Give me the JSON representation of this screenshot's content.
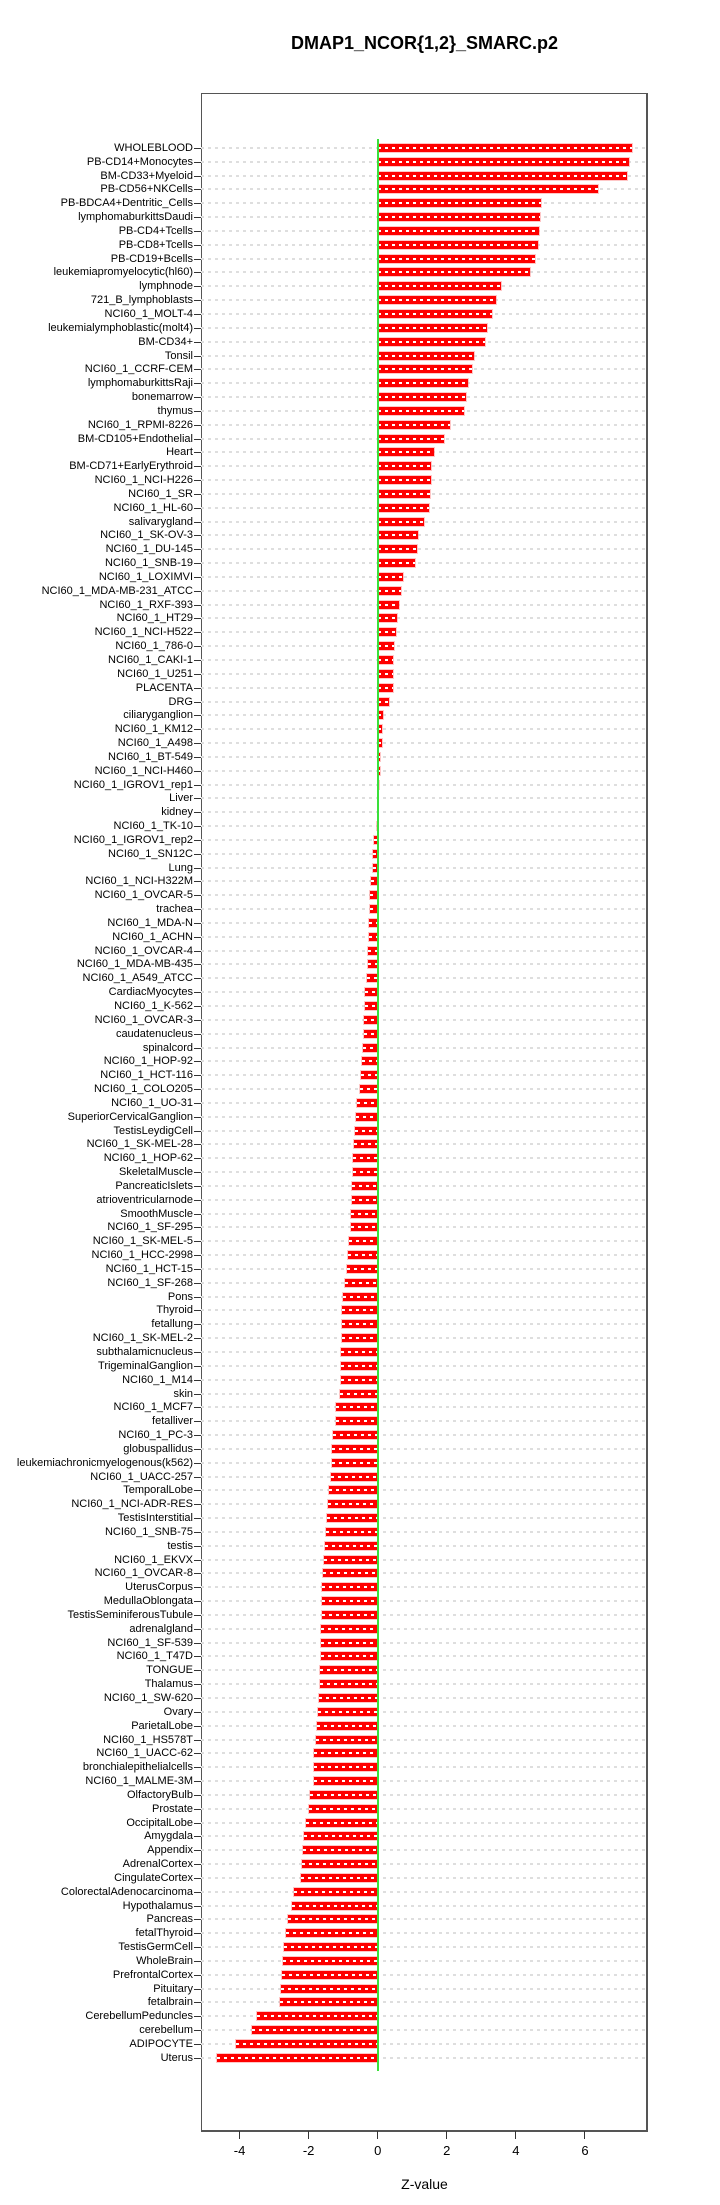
{
  "title": "DMAP1_NCOR{1,2}_SMARC.p2",
  "chart_data": {
    "type": "bar",
    "orientation": "horizontal",
    "title": "DMAP1_NCOR{1,2}_SMARC.p2",
    "xlabel": "Z-value",
    "xlim": [
      -5.115,
      7.824
    ],
    "xticks": [
      -4,
      -2,
      0,
      2,
      4,
      6
    ],
    "grid": "dashed-horizontal-per-row",
    "legend": "none",
    "bar_color": "#fe0000",
    "zero_line_color": "#3ae03a",
    "grid_color": "#dedede",
    "categories": [
      "WHOLEBLOOD",
      "PB-CD14+Monocytes",
      "BM-CD33+Myeloid",
      "PB-CD56+NKCells",
      "PB-BDCA4+Dentritic_Cells",
      "lymphomaburkittsDaudi",
      "PB-CD4+Tcells",
      "PB-CD8+Tcells",
      "PB-CD19+Bcells",
      "leukemiapromyelocytic(hl60)",
      "lymphnode",
      "721_B_lymphoblasts",
      "NCI60_1_MOLT-4",
      "leukemialymphoblastic(molt4)",
      "BM-CD34+",
      "Tonsil",
      "NCI60_1_CCRF-CEM",
      "lymphomaburkittsRaji",
      "bonemarrow",
      "thymus",
      "NCI60_1_RPMI-8226",
      "BM-CD105+Endothelial",
      "Heart",
      "BM-CD71+EarlyErythroid",
      "NCI60_1_NCI-H226",
      "NCI60_1_SR",
      "NCI60_1_HL-60",
      "salivarygland",
      "NCI60_1_SK-OV-3",
      "NCI60_1_DU-145",
      "NCI60_1_SNB-19",
      "NCI60_1_LOXIMVI",
      "NCI60_1_MDA-MB-231_ATCC",
      "NCI60_1_RXF-393",
      "NCI60_1_HT29",
      "NCI60_1_NCI-H522",
      "NCI60_1_786-0",
      "NCI60_1_CAKI-1",
      "NCI60_1_U251",
      "PLACENTA",
      "DRG",
      "ciliaryganglion",
      "NCI60_1_KM12",
      "NCI60_1_A498",
      "NCI60_1_BT-549",
      "NCI60_1_NCI-H460",
      "NCI60_1_IGROV1_rep1",
      "Liver",
      "kidney",
      "NCI60_1_TK-10",
      "NCI60_1_IGROV1_rep2",
      "NCI60_1_SN12C",
      "Lung",
      "NCI60_1_NCI-H322M",
      "NCI60_1_OVCAR-5",
      "trachea",
      "NCI60_1_MDA-N",
      "NCI60_1_ACHN",
      "NCI60_1_OVCAR-4",
      "NCI60_1_MDA-MB-435",
      "NCI60_1_A549_ATCC",
      "CardiacMyocytes",
      "NCI60_1_K-562",
      "NCI60_1_OVCAR-3",
      "caudatenucleus",
      "spinalcord",
      "NCI60_1_HOP-92",
      "NCI60_1_HCT-116",
      "NCI60_1_COLO205",
      "NCI60_1_UO-31",
      "SuperiorCervicalGanglion",
      "TestisLeydigCell",
      "NCI60_1_SK-MEL-28",
      "NCI60_1_HOP-62",
      "SkeletalMuscle",
      "PancreaticIslets",
      "atrioventricularnode",
      "SmoothMuscle",
      "NCI60_1_SF-295",
      "NCI60_1_SK-MEL-5",
      "NCI60_1_HCC-2998",
      "NCI60_1_HCT-15",
      "NCI60_1_SF-268",
      "Pons",
      "Thyroid",
      "fetallung",
      "NCI60_1_SK-MEL-2",
      "subthalamicnucleus",
      "TrigeminalGanglion",
      "NCI60_1_M14",
      "skin",
      "NCI60_1_MCF7",
      "fetalliver",
      "NCI60_1_PC-3",
      "globuspallidus",
      "leukemiachronicmyelogenous(k562)",
      "NCI60_1_UACC-257",
      "TemporalLobe",
      "NCI60_1_NCI-ADR-RES",
      "TestisInterstitial",
      "NCI60_1_SNB-75",
      "testis",
      "NCI60_1_EKVX",
      "NCI60_1_OVCAR-8",
      "UterusCorpus",
      "MedullaOblongata",
      "TestisSeminiferousTubule",
      "adrenalgland",
      "NCI60_1_SF-539",
      "NCI60_1_T47D",
      "TONGUE",
      "Thalamus",
      "NCI60_1_SW-620",
      "Ovary",
      "ParietalLobe",
      "NCI60_1_HS578T",
      "NCI60_1_UACC-62",
      "bronchialepithelialcells",
      "NCI60_1_MALME-3M",
      "OlfactoryBulb",
      "Prostate",
      "OccipitalLobe",
      "Amygdala",
      "Appendix",
      "AdrenalCortex",
      "CingulateCortex",
      "ColorectalAdenocarcinoma",
      "Hypothalamus",
      "Pancreas",
      "fetalThyroid",
      "TestisGermCell",
      "WholeBrain",
      "PrefrontalCortex",
      "Pituitary",
      "fetalbrain",
      "CerebellumPeduncles",
      "cerebellum",
      "ADIPOCYTE",
      "Uterus"
    ],
    "values": [
      7.35,
      7.28,
      7.23,
      6.38,
      4.72,
      4.7,
      4.67,
      4.63,
      4.55,
      4.42,
      3.58,
      3.43,
      3.3,
      3.17,
      3.1,
      2.79,
      2.72,
      2.62,
      2.57,
      2.5,
      2.09,
      1.92,
      1.64,
      1.55,
      1.54,
      1.52,
      1.48,
      1.35,
      1.17,
      1.13,
      1.08,
      0.74,
      0.67,
      0.62,
      0.55,
      0.52,
      0.47,
      0.45,
      0.45,
      0.43,
      0.34,
      0.14,
      0.11,
      0.11,
      0.08,
      0.06,
      0.04,
      0.01,
      0.0,
      -0.02,
      -0.11,
      -0.13,
      -0.15,
      -0.19,
      -0.22,
      -0.23,
      -0.24,
      -0.26,
      -0.27,
      -0.29,
      -0.32,
      -0.36,
      -0.38,
      -0.39,
      -0.4,
      -0.42,
      -0.45,
      -0.48,
      -0.52,
      -0.59,
      -0.63,
      -0.66,
      -0.69,
      -0.71,
      -0.72,
      -0.73,
      -0.74,
      -0.76,
      -0.78,
      -0.83,
      -0.86,
      -0.88,
      -0.96,
      -1.0,
      -1.02,
      -1.02,
      -1.03,
      -1.05,
      -1.05,
      -1.07,
      -1.08,
      -1.2,
      -1.22,
      -1.28,
      -1.31,
      -1.32,
      -1.36,
      -1.41,
      -1.44,
      -1.46,
      -1.51,
      -1.54,
      -1.56,
      -1.57,
      -1.6,
      -1.6,
      -1.61,
      -1.63,
      -1.64,
      -1.65,
      -1.66,
      -1.68,
      -1.7,
      -1.73,
      -1.75,
      -1.8,
      -1.83,
      -1.83,
      -1.84,
      -1.96,
      -1.99,
      -2.07,
      -2.13,
      -2.17,
      -2.18,
      -2.21,
      -2.42,
      -2.48,
      -2.59,
      -2.65,
      -2.71,
      -2.74,
      -2.76,
      -2.79,
      -2.84,
      -3.5,
      -3.65,
      -4.11,
      -4.64
    ]
  }
}
